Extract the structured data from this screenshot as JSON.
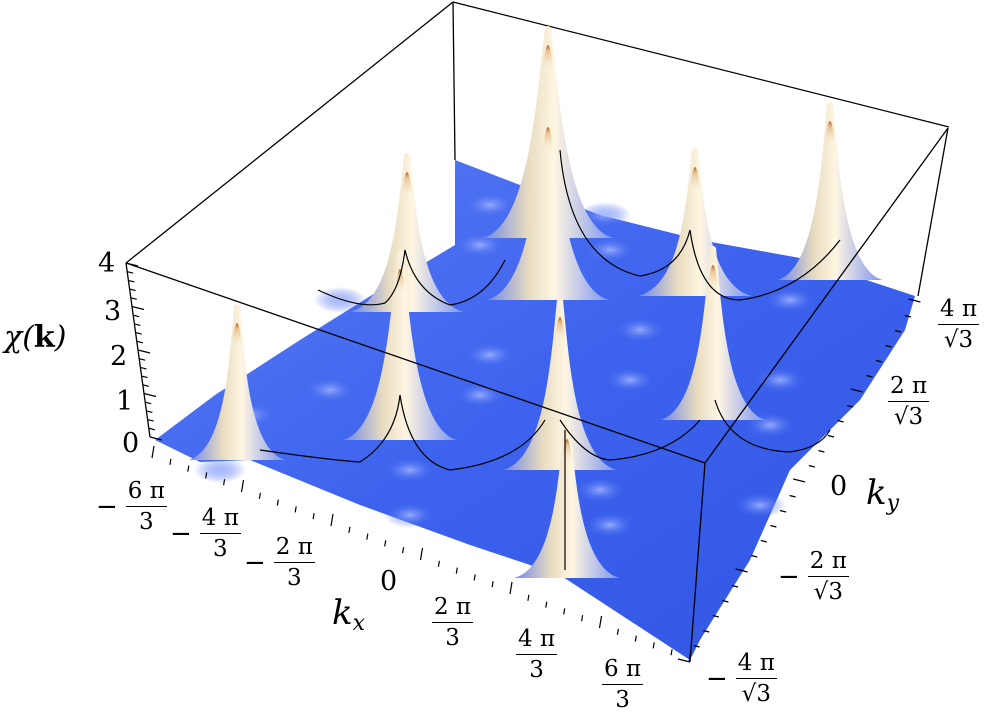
{
  "figure": {
    "z_axis_label": {
      "symbol": "χ",
      "arg_open": "(",
      "arg_bold": "k",
      "arg_close": ")"
    },
    "x_axis_label": {
      "base": "k",
      "sub": "x"
    },
    "y_axis_label": {
      "base": "k",
      "sub": "y"
    },
    "z_ticks": [
      "0",
      "1",
      "2",
      "3",
      "4"
    ],
    "x_ticks": [
      {
        "sign": "−",
        "num": "6 π",
        "den": "3"
      },
      {
        "sign": "−",
        "num": "4 π",
        "den": "3"
      },
      {
        "sign": "−",
        "num": "2 π",
        "den": "3"
      },
      {
        "sign": "",
        "num": "0",
        "den": ""
      },
      {
        "sign": "",
        "num": "2 π",
        "den": "3"
      },
      {
        "sign": "",
        "num": "4 π",
        "den": "3"
      },
      {
        "sign": "",
        "num": "6 π",
        "den": "3"
      }
    ],
    "y_ticks": [
      {
        "sign": "−",
        "num": "4 π",
        "den": "√3"
      },
      {
        "sign": "−",
        "num": "2 π",
        "den": "√3"
      },
      {
        "sign": "",
        "num": "0",
        "den": ""
      },
      {
        "sign": "",
        "num": "2 π",
        "den": "√3"
      },
      {
        "sign": "",
        "num": "4 π",
        "den": "√3"
      }
    ],
    "z_range": [
      0,
      4
    ],
    "surface_color": "#3f63f0",
    "peak_color": "#f3e6c8",
    "peak_tip_color": "#c46a2a",
    "box_color": "#000000"
  }
}
